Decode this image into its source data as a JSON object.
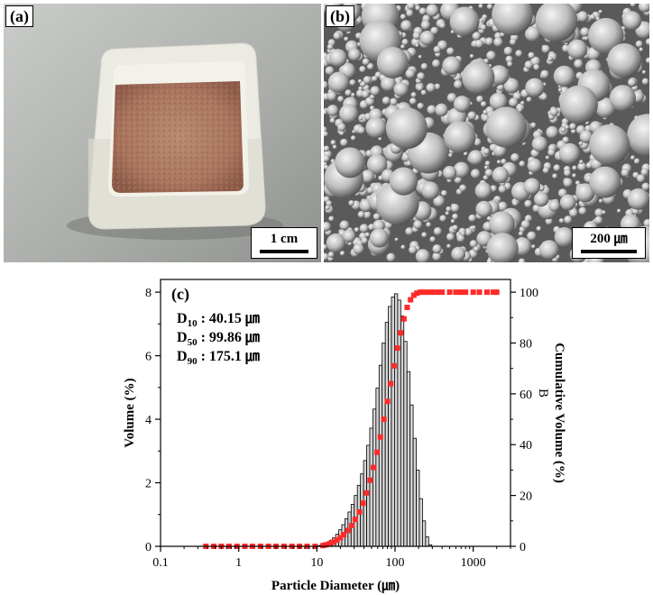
{
  "panel_a": {
    "label": "(a)",
    "scale_bar": "1 cm"
  },
  "panel_b": {
    "label": "(b)",
    "scale_bar": "200 ㎛"
  },
  "panel_c": {
    "label": "(c)",
    "stats": [
      {
        "name": "D",
        "sub": "10",
        "value": " : 40.15 ㎛"
      },
      {
        "name": "D",
        "sub": "50",
        "value": " : 99.86 ㎛"
      },
      {
        "name": "D",
        "sub": "90",
        "value": " : 175.1 ㎛"
      }
    ],
    "secondary_axis_mark": "B"
  },
  "chart_data": {
    "type": "bar",
    "title": "",
    "xlabel": "Particle Diameter (㎛)",
    "ylabel": "Volume (%)",
    "y2label": "Cumulative Volume (%)",
    "x_scale": "log",
    "xlim": [
      0.1,
      3000
    ],
    "ylim": [
      0,
      8.4
    ],
    "y2lim": [
      0,
      105
    ],
    "x_ticks": [
      0.1,
      1,
      10,
      100,
      1000
    ],
    "x_tick_labels": [
      "0.1",
      "1",
      "10",
      "100",
      "1000"
    ],
    "y_ticks": [
      0,
      2,
      4,
      6,
      8
    ],
    "y2_ticks": [
      0,
      20,
      40,
      60,
      80,
      100
    ],
    "series": [
      {
        "name": "Volume (%)",
        "type": "bar",
        "axis": "left",
        "bins": [
          10.5,
          11.5,
          12.6,
          13.8,
          15.1,
          16.6,
          18.2,
          19.9,
          21.8,
          23.9,
          26.2,
          28.7,
          31.5,
          34.5,
          37.8,
          41.4,
          45.4,
          49.7,
          54.5,
          59.7,
          65.4,
          71.6,
          78.5,
          86.0,
          94.2,
          103.2,
          113.1,
          123.9,
          135.8,
          148.8,
          163.0,
          178.6,
          195.7,
          214.4,
          234.9,
          257.4,
          282.0
        ],
        "values": [
          0.02,
          0.04,
          0.07,
          0.12,
          0.18,
          0.27,
          0.38,
          0.52,
          0.68,
          0.87,
          1.08,
          1.32,
          1.6,
          1.92,
          2.28,
          2.7,
          3.18,
          3.72,
          4.32,
          4.98,
          5.7,
          6.4,
          7.05,
          7.55,
          7.85,
          7.95,
          7.75,
          7.25,
          6.45,
          5.5,
          4.45,
          3.4,
          2.4,
          1.5,
          0.8,
          0.3,
          0.05
        ]
      },
      {
        "name": "Cumulative Volume (%)",
        "type": "scatter",
        "axis": "right",
        "color": "#ff2a2a",
        "x": [
          0.38,
          0.48,
          0.6,
          0.75,
          0.95,
          1.2,
          1.5,
          1.9,
          2.4,
          3.0,
          3.8,
          4.8,
          6.0,
          7.5,
          9.5,
          12,
          13,
          14.5,
          16,
          18,
          20,
          22,
          25,
          28,
          31,
          35,
          39,
          43,
          48,
          53,
          59,
          65,
          72,
          80,
          88,
          97,
          107,
          118,
          130,
          143,
          158,
          174,
          190,
          210,
          235,
          260,
          300,
          350,
          400,
          500,
          600,
          700,
          800,
          1000,
          1200,
          1500,
          1800,
          2000
        ],
        "values": [
          0,
          0,
          0,
          0,
          0,
          0,
          0,
          0,
          0,
          0,
          0,
          0,
          0,
          0,
          0,
          0.3,
          0.6,
          1.0,
          1.6,
          2.4,
          3.4,
          4.6,
          6.2,
          8.2,
          10.6,
          13.5,
          17,
          21,
          26,
          31,
          37,
          43,
          50,
          57,
          64,
          71,
          78,
          84,
          89.5,
          94,
          97,
          98.8,
          99.6,
          100,
          100,
          100,
          100,
          100,
          100,
          100,
          100,
          100,
          100,
          100,
          100,
          100,
          100,
          100
        ]
      }
    ]
  }
}
